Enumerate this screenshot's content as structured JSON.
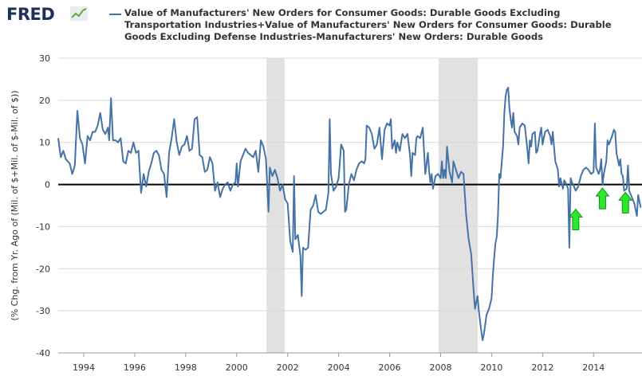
{
  "header": {
    "logo_text": "FRED",
    "logo_icon": "trend-line-icon",
    "legend_label": "Value of Manufacturers' New Orders for Consumer Goods: Durable Goods Excluding Transportation Industries+Value of Manufacturers' New Orders for Consumer Goods: Durable Goods Excluding Defense Industries-Manufacturers' New Orders: Durable Goods"
  },
  "colors": {
    "series": "#4572a7",
    "recession": "#e1e1e1",
    "zero_line": "#000000",
    "arrows": "#2ee62e",
    "grid": "#d8d8d8"
  },
  "chart_data": {
    "type": "line",
    "title": "",
    "xlabel": "",
    "ylabel": "(% Chg. from Yr. Ago of (Mil. of $+Mil. of $-Mil. of $))",
    "xlim": [
      1993.0,
      2015.9
    ],
    "ylim": [
      -40,
      30
    ],
    "y_ticks": [
      30,
      20,
      10,
      0,
      -10,
      -20,
      -30,
      -40
    ],
    "x_ticks": [
      "1994",
      "1996",
      "1998",
      "2000",
      "2002",
      "2004",
      "2006",
      "2008",
      "2010",
      "2012",
      "2014"
    ],
    "grid": "horizontal",
    "legend": "top",
    "recessions": [
      [
        2001.17,
        2001.88
      ],
      [
        2007.92,
        2009.46
      ]
    ],
    "reference_line": 0,
    "annotations": [
      {
        "type": "arrow-up",
        "x": 2013.3,
        "y": -8.5
      },
      {
        "type": "arrow-up",
        "x": 2014.35,
        "y": -3.5
      },
      {
        "type": "arrow-up",
        "x": 2015.25,
        "y": -4.5
      }
    ],
    "series": [
      {
        "name": "Value of Manufacturers' New Orders for Consumer Goods: Durable Goods Excluding Transportation Industries+Value of Manufacturers' New Orders for Consumer Goods: Durable Goods Excluding Defense Industries-Manufacturers' New Orders: Durable Goods",
        "points": [
          [
            1993.0,
            11.0
          ],
          [
            1993.1,
            6.5
          ],
          [
            1993.2,
            8.0
          ],
          [
            1993.3,
            6.0
          ],
          [
            1993.45,
            5.0
          ],
          [
            1993.55,
            2.5
          ],
          [
            1993.65,
            4.5
          ],
          [
            1993.75,
            17.5
          ],
          [
            1993.85,
            11.0
          ],
          [
            1993.95,
            9.5
          ],
          [
            1994.05,
            5.0
          ],
          [
            1994.15,
            11.5
          ],
          [
            1994.25,
            10.5
          ],
          [
            1994.35,
            12.5
          ],
          [
            1994.45,
            12.5
          ],
          [
            1994.55,
            14.0
          ],
          [
            1994.65,
            17.0
          ],
          [
            1994.75,
            13.0
          ],
          [
            1994.85,
            12.0
          ],
          [
            1994.95,
            13.5
          ],
          [
            1995.0,
            10.5
          ],
          [
            1995.07,
            20.5
          ],
          [
            1995.15,
            10.5
          ],
          [
            1995.25,
            10.5
          ],
          [
            1995.35,
            10.0
          ],
          [
            1995.45,
            11.0
          ],
          [
            1995.55,
            5.5
          ],
          [
            1995.65,
            5.0
          ],
          [
            1995.75,
            8.0
          ],
          [
            1995.85,
            7.5
          ],
          [
            1995.95,
            10.0
          ],
          [
            1996.05,
            7.5
          ],
          [
            1996.15,
            8.0
          ],
          [
            1996.25,
            -2.0
          ],
          [
            1996.35,
            2.5
          ],
          [
            1996.45,
            -0.5
          ],
          [
            1996.55,
            3.0
          ],
          [
            1996.65,
            5.0
          ],
          [
            1996.75,
            7.5
          ],
          [
            1996.85,
            8.0
          ],
          [
            1996.95,
            7.0
          ],
          [
            1997.05,
            3.5
          ],
          [
            1997.15,
            2.5
          ],
          [
            1997.25,
            -3.0
          ],
          [
            1997.35,
            7.5
          ],
          [
            1997.45,
            11.0
          ],
          [
            1997.55,
            15.5
          ],
          [
            1997.65,
            10.0
          ],
          [
            1997.75,
            7.0
          ],
          [
            1997.85,
            9.0
          ],
          [
            1997.95,
            9.5
          ],
          [
            1998.05,
            11.5
          ],
          [
            1998.15,
            8.0
          ],
          [
            1998.25,
            8.5
          ],
          [
            1998.35,
            15.5
          ],
          [
            1998.45,
            16.0
          ],
          [
            1998.55,
            7.0
          ],
          [
            1998.65,
            6.5
          ],
          [
            1998.75,
            3.0
          ],
          [
            1998.85,
            3.5
          ],
          [
            1998.95,
            6.5
          ],
          [
            1999.05,
            5.0
          ],
          [
            1999.15,
            -1.5
          ],
          [
            1999.25,
            0.5
          ],
          [
            1999.35,
            -3.0
          ],
          [
            1999.45,
            -1.0
          ],
          [
            1999.55,
            0.0
          ],
          [
            1999.65,
            0.5
          ],
          [
            1999.75,
            -1.5
          ],
          [
            1999.85,
            0.0
          ],
          [
            1999.95,
            0.5
          ],
          [
            2000.0,
            5.0
          ],
          [
            2000.05,
            -0.5
          ],
          [
            2000.15,
            5.5
          ],
          [
            2000.25,
            7.0
          ],
          [
            2000.35,
            8.5
          ],
          [
            2000.45,
            7.5
          ],
          [
            2000.55,
            7.0
          ],
          [
            2000.65,
            6.5
          ],
          [
            2000.75,
            8.0
          ],
          [
            2000.85,
            3.0
          ],
          [
            2000.95,
            10.5
          ],
          [
            2001.05,
            9.0
          ],
          [
            2001.15,
            6.0
          ],
          [
            2001.25,
            -6.5
          ],
          [
            2001.3,
            4.0
          ],
          [
            2001.4,
            2.0
          ],
          [
            2001.5,
            3.5
          ],
          [
            2001.6,
            1.5
          ],
          [
            2001.7,
            -1.5
          ],
          [
            2001.8,
            0.0
          ],
          [
            2001.9,
            -3.5
          ],
          [
            2002.0,
            -4.5
          ],
          [
            2002.1,
            -13.5
          ],
          [
            2002.2,
            -16.0
          ],
          [
            2002.25,
            2.0
          ],
          [
            2002.3,
            -13.0
          ],
          [
            2002.4,
            -12.0
          ],
          [
            2002.5,
            -17.0
          ],
          [
            2002.55,
            -26.5
          ],
          [
            2002.6,
            -15.0
          ],
          [
            2002.7,
            -15.5
          ],
          [
            2002.8,
            -15.0
          ],
          [
            2002.9,
            -6.0
          ],
          [
            2003.0,
            -5.0
          ],
          [
            2003.1,
            -2.5
          ],
          [
            2003.2,
            -6.5
          ],
          [
            2003.3,
            -7.0
          ],
          [
            2003.4,
            -6.5
          ],
          [
            2003.5,
            -6.0
          ],
          [
            2003.6,
            -2.0
          ],
          [
            2003.65,
            15.5
          ],
          [
            2003.7,
            2.5
          ],
          [
            2003.8,
            -1.5
          ],
          [
            2003.9,
            -0.5
          ],
          [
            2004.0,
            1.5
          ],
          [
            2004.1,
            9.5
          ],
          [
            2004.2,
            8.0
          ],
          [
            2004.25,
            -6.5
          ],
          [
            2004.3,
            -6.0
          ],
          [
            2004.4,
            0.0
          ],
          [
            2004.5,
            2.5
          ],
          [
            2004.6,
            1.0
          ],
          [
            2004.7,
            3.5
          ],
          [
            2004.8,
            5.0
          ],
          [
            2004.9,
            5.5
          ],
          [
            2005.0,
            5.0
          ],
          [
            2005.05,
            6.0
          ],
          [
            2005.1,
            14.0
          ],
          [
            2005.2,
            13.5
          ],
          [
            2005.3,
            12.0
          ],
          [
            2005.4,
            8.5
          ],
          [
            2005.5,
            9.5
          ],
          [
            2005.6,
            13.5
          ],
          [
            2005.7,
            6.0
          ],
          [
            2005.8,
            13.0
          ],
          [
            2005.9,
            14.5
          ],
          [
            2006.0,
            14.0
          ],
          [
            2006.05,
            15.5
          ],
          [
            2006.1,
            8.5
          ],
          [
            2006.2,
            10.5
          ],
          [
            2006.25,
            7.5
          ],
          [
            2006.3,
            10.0
          ],
          [
            2006.4,
            8.0
          ],
          [
            2006.5,
            12.0
          ],
          [
            2006.6,
            11.0
          ],
          [
            2006.7,
            12.0
          ],
          [
            2006.8,
            7.0
          ],
          [
            2006.85,
            2.0
          ],
          [
            2006.9,
            7.5
          ],
          [
            2007.0,
            7.0
          ],
          [
            2007.05,
            11.0
          ],
          [
            2007.1,
            11.5
          ],
          [
            2007.2,
            11.0
          ],
          [
            2007.3,
            13.5
          ],
          [
            2007.35,
            8.0
          ],
          [
            2007.4,
            2.5
          ],
          [
            2007.5,
            7.5
          ],
          [
            2007.55,
            3.0
          ],
          [
            2007.6,
            0.5
          ],
          [
            2007.65,
            2.5
          ],
          [
            2007.7,
            -1.0
          ],
          [
            2007.8,
            2.0
          ],
          [
            2007.9,
            2.5
          ],
          [
            2008.0,
            1.5
          ],
          [
            2008.05,
            5.5
          ],
          [
            2008.1,
            1.5
          ],
          [
            2008.15,
            3.5
          ],
          [
            2008.2,
            1.5
          ],
          [
            2008.25,
            9.0
          ],
          [
            2008.35,
            3.0
          ],
          [
            2008.45,
            0.5
          ],
          [
            2008.5,
            5.5
          ],
          [
            2008.6,
            3.5
          ],
          [
            2008.7,
            1.5
          ],
          [
            2008.8,
            3.0
          ],
          [
            2008.9,
            2.5
          ],
          [
            2009.0,
            -7.0
          ],
          [
            2009.1,
            -13.0
          ],
          [
            2009.2,
            -16.5
          ],
          [
            2009.3,
            -25.5
          ],
          [
            2009.35,
            -29.5
          ],
          [
            2009.45,
            -26.5
          ],
          [
            2009.5,
            -30.0
          ],
          [
            2009.6,
            -35.0
          ],
          [
            2009.65,
            -37.0
          ],
          [
            2009.7,
            -35.5
          ],
          [
            2009.8,
            -31.0
          ],
          [
            2009.9,
            -29.5
          ],
          [
            2010.0,
            -27.0
          ],
          [
            2010.05,
            -21.5
          ],
          [
            2010.1,
            -17.5
          ],
          [
            2010.15,
            -14.0
          ],
          [
            2010.2,
            -12.5
          ],
          [
            2010.25,
            -7.5
          ],
          [
            2010.3,
            2.5
          ],
          [
            2010.35,
            1.5
          ],
          [
            2010.4,
            5.5
          ],
          [
            2010.45,
            9.0
          ],
          [
            2010.5,
            17.0
          ],
          [
            2010.55,
            21.0
          ],
          [
            2010.6,
            22.5
          ],
          [
            2010.65,
            23.0
          ],
          [
            2010.7,
            18.0
          ],
          [
            2010.75,
            15.5
          ],
          [
            2010.8,
            13.5
          ],
          [
            2010.85,
            17.0
          ],
          [
            2010.9,
            12.5
          ],
          [
            2011.0,
            11.5
          ],
          [
            2011.05,
            9.5
          ],
          [
            2011.1,
            13.5
          ],
          [
            2011.2,
            14.5
          ],
          [
            2011.3,
            14.0
          ],
          [
            2011.4,
            8.5
          ],
          [
            2011.45,
            5.0
          ],
          [
            2011.5,
            10.5
          ],
          [
            2011.55,
            9.0
          ],
          [
            2011.6,
            12.0
          ],
          [
            2011.7,
            12.5
          ],
          [
            2011.75,
            7.5
          ],
          [
            2011.8,
            8.0
          ],
          [
            2011.9,
            12.0
          ],
          [
            2011.95,
            13.5
          ],
          [
            2012.0,
            9.5
          ],
          [
            2012.1,
            12.5
          ],
          [
            2012.2,
            13.0
          ],
          [
            2012.3,
            11.5
          ],
          [
            2012.35,
            9.5
          ],
          [
            2012.4,
            12.5
          ],
          [
            2012.5,
            5.5
          ],
          [
            2012.6,
            3.5
          ],
          [
            2012.65,
            -0.5
          ],
          [
            2012.7,
            1.5
          ],
          [
            2012.8,
            -1.0
          ],
          [
            2012.85,
            1.0
          ],
          [
            2012.9,
            0.5
          ],
          [
            2013.0,
            -1.0
          ],
          [
            2013.05,
            -15.0
          ],
          [
            2013.1,
            1.5
          ],
          [
            2013.15,
            0.5
          ],
          [
            2013.2,
            0.0
          ],
          [
            2013.3,
            -1.5
          ],
          [
            2013.4,
            -0.5
          ],
          [
            2013.5,
            2.0
          ],
          [
            2013.6,
            3.5
          ],
          [
            2013.7,
            4.0
          ],
          [
            2013.8,
            3.5
          ],
          [
            2013.9,
            2.5
          ],
          [
            2014.0,
            3.0
          ],
          [
            2014.05,
            14.5
          ],
          [
            2014.1,
            4.0
          ],
          [
            2014.2,
            2.5
          ],
          [
            2014.25,
            3.5
          ],
          [
            2014.3,
            6.0
          ],
          [
            2014.35,
            0.0
          ],
          [
            2014.4,
            2.5
          ],
          [
            2014.5,
            5.5
          ],
          [
            2014.55,
            10.5
          ],
          [
            2014.6,
            9.5
          ],
          [
            2014.7,
            11.0
          ],
          [
            2014.8,
            13.0
          ],
          [
            2014.85,
            12.5
          ],
          [
            2014.9,
            7.5
          ],
          [
            2015.0,
            4.5
          ],
          [
            2015.05,
            6.0
          ],
          [
            2015.1,
            2.5
          ],
          [
            2015.15,
            2.0
          ],
          [
            2015.2,
            -1.5
          ],
          [
            2015.3,
            -1.0
          ],
          [
            2015.35,
            4.5
          ],
          [
            2015.4,
            -1.5
          ],
          [
            2015.5,
            -3.0
          ],
          [
            2015.6,
            -4.5
          ],
          [
            2015.7,
            -7.5
          ],
          [
            2015.75,
            -2.5
          ],
          [
            2015.8,
            -4.0
          ],
          [
            2015.85,
            -5.5
          ]
        ]
      }
    ]
  }
}
